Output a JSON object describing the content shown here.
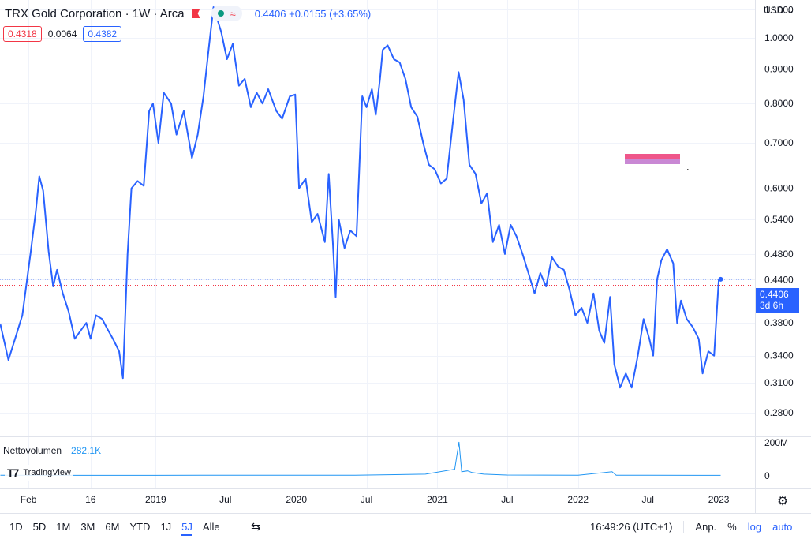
{
  "header": {
    "title": "TRX Gold Corporation · 1W · Arca",
    "last": "0.4406",
    "change": "+0.0155",
    "change_pct": "(+3.65%)",
    "pill_icon": "wave-icon"
  },
  "ohlc": {
    "bid": "0.4318",
    "spread": "0.0064",
    "ask": "0.4382"
  },
  "volume": {
    "label": "Nettovolumen",
    "value": "282.1K"
  },
  "brand": {
    "name": "TradingView"
  },
  "axis": {
    "currency": "USD"
  },
  "last_price_tag": {
    "price": "0.4406",
    "countdown": "3d 6h"
  },
  "bottom": {
    "ranges": [
      "1D",
      "5D",
      "1M",
      "3M",
      "6M",
      "YTD",
      "1J",
      "5J",
      "Alle"
    ],
    "active_range": "5J",
    "time": "16:49:26 (UTC+1)",
    "adj": "Anp.",
    "pct": "%",
    "log": "log",
    "auto": "auto"
  },
  "colors": {
    "line": "#2962ff",
    "volume": "#2196f3",
    "red": "#f23645"
  },
  "chart_data": {
    "type": "line",
    "scale": "log",
    "ylim": [
      0.2585,
      1.137
    ],
    "y_ticks": [
      1.1,
      1.0,
      0.9,
      0.8,
      0.7,
      0.6,
      0.54,
      0.48,
      0.44,
      0.38,
      0.34,
      0.31,
      0.28
    ],
    "y_tick_labels": [
      "1.1000",
      "1.0000",
      "0.9000",
      "0.8000",
      "0.7000",
      "0.6000",
      "0.5400",
      "0.4800",
      "0.4400",
      "0.3800",
      "0.3400",
      "0.3100",
      "0.2800"
    ],
    "x_ticks": [
      {
        "label": "Feb",
        "date": "2018-02-05"
      },
      {
        "label": "16",
        "date": "2018-07-16"
      },
      {
        "label": "2019",
        "date": "2019-01-01"
      },
      {
        "label": "Jul",
        "date": "2019-07-01"
      },
      {
        "label": "2020",
        "date": "2020-01-01"
      },
      {
        "label": "Jul",
        "date": "2020-07-01"
      },
      {
        "label": "2021",
        "date": "2021-01-01"
      },
      {
        "label": "Jul",
        "date": "2021-07-01"
      },
      {
        "label": "2022",
        "date": "2022-01-01"
      },
      {
        "label": "Jul",
        "date": "2022-07-01"
      },
      {
        "label": "2023",
        "date": "2023-01-01"
      }
    ],
    "xlim": [
      "2017-11-23",
      "2023-04-05"
    ],
    "series": [
      {
        "values": [
          [
            "2017-11-24",
            0.378
          ],
          [
            "2017-12-15",
            0.335
          ],
          [
            "2018-01-01",
            0.36
          ],
          [
            "2018-01-20",
            0.39
          ],
          [
            "2018-02-10",
            0.48
          ],
          [
            "2018-02-24",
            0.555
          ],
          [
            "2018-03-05",
            0.625
          ],
          [
            "2018-03-15",
            0.595
          ],
          [
            "2018-03-29",
            0.485
          ],
          [
            "2018-04-10",
            0.43
          ],
          [
            "2018-04-20",
            0.455
          ],
          [
            "2018-05-05",
            0.42
          ],
          [
            "2018-05-20",
            0.395
          ],
          [
            "2018-06-05",
            0.36
          ],
          [
            "2018-06-20",
            0.37
          ],
          [
            "2018-07-05",
            0.38
          ],
          [
            "2018-07-16",
            0.36
          ],
          [
            "2018-07-30",
            0.39
          ],
          [
            "2018-08-15",
            0.385
          ],
          [
            "2018-08-29",
            0.372
          ],
          [
            "2018-09-12",
            0.36
          ],
          [
            "2018-09-28",
            0.345
          ],
          [
            "2018-10-08",
            0.315
          ],
          [
            "2018-10-20",
            0.48
          ],
          [
            "2018-10-30",
            0.6
          ],
          [
            "2018-11-15",
            0.615
          ],
          [
            "2018-12-01",
            0.605
          ],
          [
            "2018-12-15",
            0.78
          ],
          [
            "2018-12-25",
            0.8
          ],
          [
            "2019-01-08",
            0.7
          ],
          [
            "2019-01-22",
            0.83
          ],
          [
            "2019-02-10",
            0.8
          ],
          [
            "2019-02-24",
            0.72
          ],
          [
            "2019-03-15",
            0.78
          ],
          [
            "2019-04-05",
            0.665
          ],
          [
            "2019-04-20",
            0.72
          ],
          [
            "2019-05-05",
            0.82
          ],
          [
            "2019-05-19",
            0.97
          ],
          [
            "2019-05-31",
            1.11
          ],
          [
            "2019-06-20",
            1.02
          ],
          [
            "2019-07-05",
            0.93
          ],
          [
            "2019-07-20",
            0.98
          ],
          [
            "2019-08-05",
            0.85
          ],
          [
            "2019-08-20",
            0.87
          ],
          [
            "2019-09-05",
            0.79
          ],
          [
            "2019-09-20",
            0.83
          ],
          [
            "2019-10-05",
            0.8
          ],
          [
            "2019-10-20",
            0.84
          ],
          [
            "2019-11-10",
            0.78
          ],
          [
            "2019-11-25",
            0.76
          ],
          [
            "2019-12-15",
            0.82
          ],
          [
            "2019-12-29",
            0.825
          ],
          [
            "2020-01-08",
            0.6
          ],
          [
            "2020-01-25",
            0.62
          ],
          [
            "2020-02-10",
            0.535
          ],
          [
            "2020-02-25",
            0.55
          ],
          [
            "2020-03-15",
            0.5
          ],
          [
            "2020-03-25",
            0.63
          ],
          [
            "2020-04-05",
            0.495
          ],
          [
            "2020-04-12",
            0.415
          ],
          [
            "2020-04-20",
            0.54
          ],
          [
            "2020-05-05",
            0.49
          ],
          [
            "2020-05-20",
            0.52
          ],
          [
            "2020-06-05",
            0.51
          ],
          [
            "2020-06-20",
            0.82
          ],
          [
            "2020-07-01",
            0.79
          ],
          [
            "2020-07-15",
            0.84
          ],
          [
            "2020-07-25",
            0.77
          ],
          [
            "2020-08-05",
            0.87
          ],
          [
            "2020-08-12",
            0.96
          ],
          [
            "2020-08-25",
            0.975
          ],
          [
            "2020-09-10",
            0.93
          ],
          [
            "2020-09-25",
            0.92
          ],
          [
            "2020-10-10",
            0.87
          ],
          [
            "2020-10-25",
            0.79
          ],
          [
            "2020-11-10",
            0.765
          ],
          [
            "2020-11-25",
            0.7
          ],
          [
            "2020-12-10",
            0.65
          ],
          [
            "2020-12-25",
            0.64
          ],
          [
            "2021-01-10",
            0.61
          ],
          [
            "2021-01-25",
            0.62
          ],
          [
            "2021-02-10",
            0.75
          ],
          [
            "2021-02-25",
            0.89
          ],
          [
            "2021-03-10",
            0.81
          ],
          [
            "2021-03-25",
            0.65
          ],
          [
            "2021-04-10",
            0.63
          ],
          [
            "2021-04-25",
            0.57
          ],
          [
            "2021-05-10",
            0.59
          ],
          [
            "2021-05-25",
            0.5
          ],
          [
            "2021-06-10",
            0.53
          ],
          [
            "2021-06-25",
            0.48
          ],
          [
            "2021-07-10",
            0.53
          ],
          [
            "2021-07-25",
            0.51
          ],
          [
            "2021-08-10",
            0.48
          ],
          [
            "2021-08-25",
            0.45
          ],
          [
            "2021-09-10",
            0.42
          ],
          [
            "2021-09-25",
            0.45
          ],
          [
            "2021-10-10",
            0.43
          ],
          [
            "2021-10-25",
            0.475
          ],
          [
            "2021-11-10",
            0.46
          ],
          [
            "2021-11-25",
            0.455
          ],
          [
            "2021-12-10",
            0.425
          ],
          [
            "2021-12-25",
            0.39
          ],
          [
            "2022-01-10",
            0.4
          ],
          [
            "2022-01-25",
            0.38
          ],
          [
            "2022-02-10",
            0.42
          ],
          [
            "2022-02-25",
            0.37
          ],
          [
            "2022-03-10",
            0.355
          ],
          [
            "2022-03-25",
            0.415
          ],
          [
            "2022-04-05",
            0.33
          ],
          [
            "2022-04-20",
            0.305
          ],
          [
            "2022-05-05",
            0.32
          ],
          [
            "2022-05-20",
            0.305
          ],
          [
            "2022-06-05",
            0.34
          ],
          [
            "2022-06-20",
            0.385
          ],
          [
            "2022-07-05",
            0.36
          ],
          [
            "2022-07-15",
            0.34
          ],
          [
            "2022-07-25",
            0.44
          ],
          [
            "2022-08-05",
            0.47
          ],
          [
            "2022-08-20",
            0.488
          ],
          [
            "2022-09-05",
            0.465
          ],
          [
            "2022-09-15",
            0.38
          ],
          [
            "2022-09-25",
            0.41
          ],
          [
            "2022-10-10",
            0.385
          ],
          [
            "2022-10-25",
            0.375
          ],
          [
            "2022-11-10",
            0.36
          ],
          [
            "2022-11-20",
            0.32
          ],
          [
            "2022-12-05",
            0.345
          ],
          [
            "2022-12-20",
            0.34
          ],
          [
            "2023-01-01",
            0.44
          ],
          [
            "2023-01-06",
            0.4406
          ]
        ]
      }
    ],
    "volume": {
      "y_ticks": [
        200,
        0
      ],
      "y_tick_labels": [
        "200M",
        "0"
      ],
      "values": [
        [
          "2017-11-24",
          4
        ],
        [
          "2018-06-01",
          3
        ],
        [
          "2019-01-01",
          3
        ],
        [
          "2019-06-01",
          4
        ],
        [
          "2020-01-01",
          4
        ],
        [
          "2020-06-01",
          4
        ],
        [
          "2020-12-01",
          10
        ],
        [
          "2021-02-15",
          40
        ],
        [
          "2021-02-26",
          205
        ],
        [
          "2021-03-05",
          25
        ],
        [
          "2021-03-20",
          30
        ],
        [
          "2021-04-01",
          20
        ],
        [
          "2021-05-01",
          10
        ],
        [
          "2021-07-01",
          5
        ],
        [
          "2022-01-01",
          4
        ],
        [
          "2022-03-30",
          25
        ],
        [
          "2022-04-10",
          4
        ],
        [
          "2022-07-01",
          4
        ],
        [
          "2023-01-06",
          3
        ]
      ]
    },
    "annotation": {
      "kind": "overlapping-labels",
      "near": "2021-11-15",
      "level": 0.72
    }
  }
}
